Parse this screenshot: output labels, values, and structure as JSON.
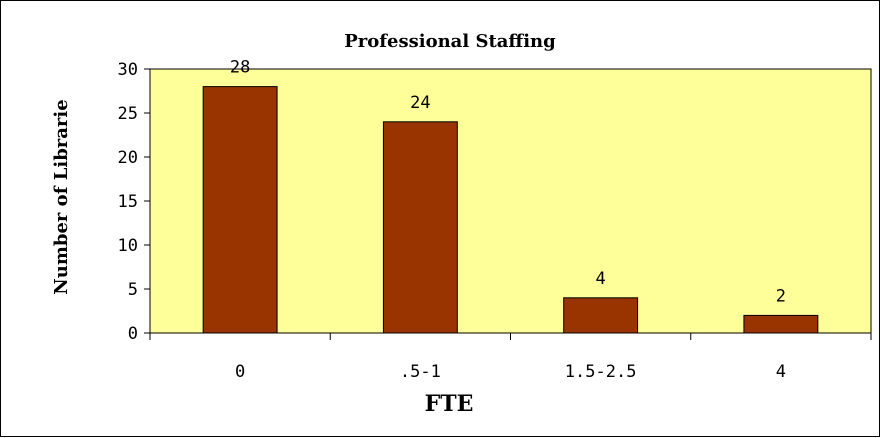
{
  "chart_data": {
    "type": "bar",
    "title": "Professional Staffing",
    "xlabel": "FTE",
    "ylabel": "Number of Librarie",
    "categories": [
      "0",
      ".5-1",
      "1.5-2.5",
      "4"
    ],
    "values": [
      28,
      24,
      4,
      2
    ],
    "data_labels": [
      "28",
      "24",
      "4",
      "2"
    ],
    "yticks": [
      "0",
      "5",
      "10",
      "15",
      "20",
      "25",
      "30"
    ],
    "ylim": [
      0,
      30
    ],
    "grid": false,
    "legend": "none",
    "colors": {
      "plot_background": "#ffff99",
      "bar_fill": "#993300",
      "bar_stroke": "#000000"
    }
  }
}
